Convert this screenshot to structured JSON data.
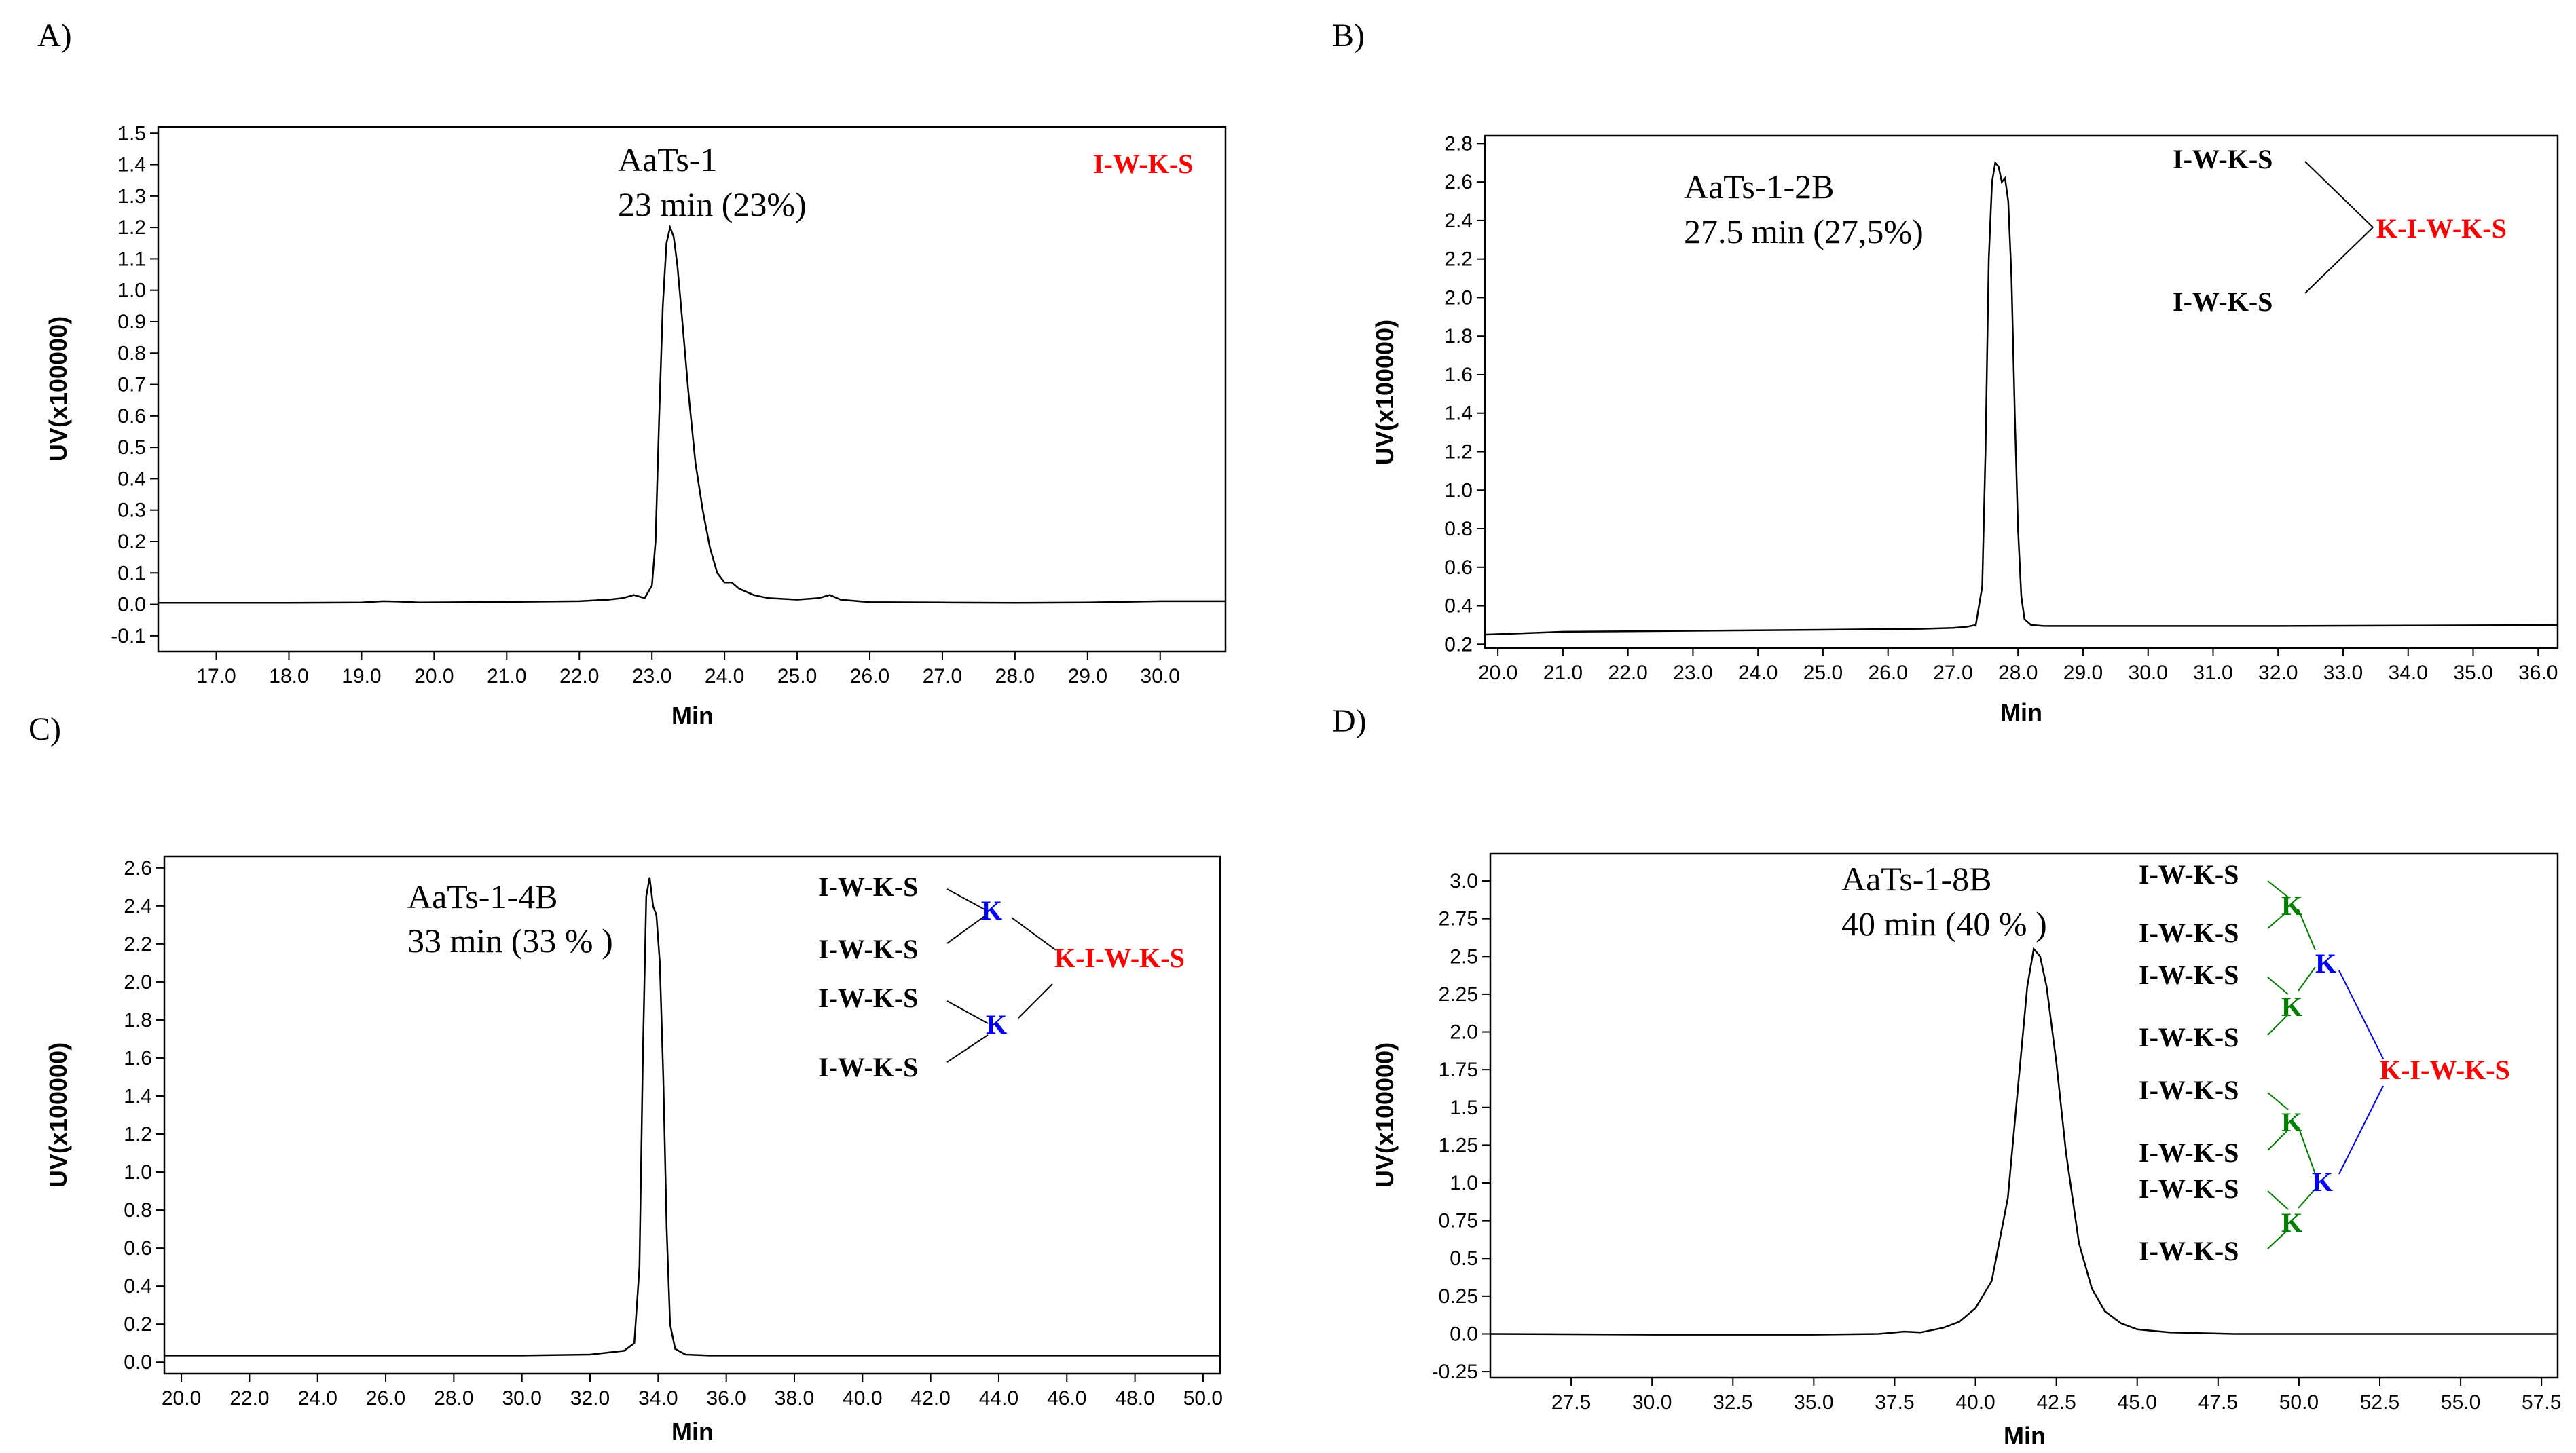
{
  "figure": {
    "panel_labels": [
      "A)",
      "B)",
      "C)",
      "D)"
    ]
  },
  "colors": {
    "black": "#000000",
    "red": "#ff0000",
    "blue": "#0000ff",
    "green": "#008000"
  },
  "chart_data": [
    {
      "type": "line",
      "panel": "A)",
      "xlabel": "Min",
      "ylabel": "UV(x100000)",
      "xlim": [
        16.2,
        30.9
      ],
      "ylim": [
        -0.15,
        1.52
      ],
      "xticks": [
        17.0,
        18.0,
        19.0,
        20.0,
        21.0,
        22.0,
        23.0,
        24.0,
        25.0,
        26.0,
        27.0,
        28.0,
        29.0,
        30.0
      ],
      "xtick_labels": [
        "17.0",
        "18.0",
        "19.0",
        "20.0",
        "21.0",
        "22.0",
        "23.0",
        "24.0",
        "25.0",
        "26.0",
        "27.0",
        "28.0",
        "29.0",
        "30.0"
      ],
      "yticks": [
        -0.1,
        0.0,
        0.1,
        0.2,
        0.3,
        0.4,
        0.5,
        0.6,
        0.7,
        0.8,
        0.9,
        1.0,
        1.1,
        1.2,
        1.3,
        1.4,
        1.5
      ],
      "ytick_labels": [
        "-0.1",
        "0.0",
        "0.1",
        "0.2",
        "0.3",
        "0.4",
        "0.5",
        "0.6",
        "0.7",
        "0.8",
        "0.9",
        "1.0",
        "1.1",
        "1.2",
        "1.3",
        "1.4",
        "1.5"
      ],
      "annotation": [
        "AaTs-1",
        "23 min (23%)"
      ],
      "series": [
        {
          "name": "UV trace",
          "x": [
            16.2,
            17.0,
            18.0,
            19.0,
            19.3,
            19.5,
            19.8,
            20.5,
            21.0,
            22.0,
            22.4,
            22.6,
            22.75,
            22.9,
            23.0,
            23.05,
            23.1,
            23.15,
            23.2,
            23.25,
            23.3,
            23.35,
            23.4,
            23.5,
            23.6,
            23.7,
            23.8,
            23.9,
            24.0,
            24.1,
            24.2,
            24.4,
            24.6,
            25.0,
            25.3,
            25.45,
            25.6,
            26.0,
            27.0,
            28.0,
            29.0,
            30.0,
            30.9
          ],
          "y": [
            0.005,
            0.005,
            0.005,
            0.006,
            0.01,
            0.009,
            0.006,
            0.007,
            0.008,
            0.01,
            0.015,
            0.02,
            0.03,
            0.02,
            0.06,
            0.2,
            0.6,
            0.95,
            1.15,
            1.2,
            1.17,
            1.08,
            0.95,
            0.68,
            0.45,
            0.3,
            0.18,
            0.1,
            0.07,
            0.07,
            0.05,
            0.03,
            0.02,
            0.015,
            0.02,
            0.03,
            0.015,
            0.007,
            0.006,
            0.005,
            0.006,
            0.01,
            0.01
          ]
        }
      ]
    },
    {
      "type": "line",
      "panel": "B)",
      "xlabel": "Min",
      "ylabel": "UV(x100000)",
      "xlim": [
        19.8,
        36.3
      ],
      "ylim": [
        0.18,
        2.84
      ],
      "xticks": [
        20.0,
        21.0,
        22.0,
        23.0,
        24.0,
        25.0,
        26.0,
        27.0,
        28.0,
        29.0,
        30.0,
        31.0,
        32.0,
        33.0,
        34.0,
        35.0,
        36.0
      ],
      "xtick_labels": [
        "20.0",
        "21.0",
        "22.0",
        "23.0",
        "24.0",
        "25.0",
        "26.0",
        "27.0",
        "28.0",
        "29.0",
        "30.0",
        "31.0",
        "32.0",
        "33.0",
        "34.0",
        "35.0",
        "36.0"
      ],
      "yticks": [
        0.2,
        0.4,
        0.6,
        0.8,
        1.0,
        1.2,
        1.4,
        1.6,
        1.8,
        2.0,
        2.2,
        2.4,
        2.6,
        2.8
      ],
      "ytick_labels": [
        "0.2",
        "0.4",
        "0.6",
        "0.8",
        "1.0",
        "1.2",
        "1.4",
        "1.6",
        "1.8",
        "2.0",
        "2.2",
        "2.4",
        "2.6",
        "2.8"
      ],
      "annotation": [
        "AaTs-1-2B",
        "27.5 min (27,5%)"
      ],
      "series": [
        {
          "name": "UV trace",
          "x": [
            19.8,
            21.0,
            23.0,
            25.0,
            26.5,
            27.0,
            27.2,
            27.35,
            27.45,
            27.5,
            27.55,
            27.6,
            27.65,
            27.7,
            27.75,
            27.8,
            27.85,
            27.9,
            27.95,
            28.0,
            28.05,
            28.1,
            28.2,
            28.4,
            29.0,
            30.0,
            32.0,
            34.0,
            36.3
          ],
          "y": [
            0.25,
            0.265,
            0.27,
            0.275,
            0.28,
            0.285,
            0.29,
            0.3,
            0.5,
            1.2,
            2.2,
            2.6,
            2.7,
            2.68,
            2.6,
            2.62,
            2.5,
            2.1,
            1.4,
            0.8,
            0.45,
            0.33,
            0.3,
            0.295,
            0.295,
            0.295,
            0.295,
            0.297,
            0.3
          ]
        }
      ],
      "structure": {
        "left_units": [
          "I-W-K-S",
          "I-W-K-S"
        ],
        "core": "K-I-W-K-S"
      }
    },
    {
      "type": "line",
      "panel": "C)",
      "xlabel": "Min",
      "ylabel": "UV(x100000)",
      "xlim": [
        19.5,
        50.5
      ],
      "ylim": [
        -0.06,
        2.66
      ],
      "xticks": [
        20.0,
        22.0,
        24.0,
        26.0,
        28.0,
        30.0,
        32.0,
        34.0,
        36.0,
        38.0,
        40.0,
        42.0,
        44.0,
        46.0,
        48.0,
        50.0
      ],
      "xtick_labels": [
        "20.0",
        "22.0",
        "24.0",
        "26.0",
        "28.0",
        "30.0",
        "32.0",
        "34.0",
        "36.0",
        "38.0",
        "40.0",
        "42.0",
        "44.0",
        "46.0",
        "48.0",
        "50.0"
      ],
      "yticks": [
        0.0,
        0.2,
        0.4,
        0.6,
        0.8,
        1.0,
        1.2,
        1.4,
        1.6,
        1.8,
        2.0,
        2.2,
        2.4,
        2.6
      ],
      "ytick_labels": [
        "0.0",
        "0.2",
        "0.4",
        "0.6",
        "0.8",
        "1.0",
        "1.2",
        "1.4",
        "1.6",
        "1.8",
        "2.0",
        "2.2",
        "2.4",
        "2.6"
      ],
      "annotation": [
        "AaTs-1-4B",
        "33 min (33 % )"
      ],
      "series": [
        {
          "name": "UV trace",
          "x": [
            19.5,
            25.0,
            30.0,
            32.0,
            33.0,
            33.3,
            33.45,
            33.55,
            33.65,
            33.75,
            33.85,
            33.95,
            34.05,
            34.15,
            34.25,
            34.35,
            34.5,
            34.8,
            35.5,
            40.0,
            45.0,
            50.5
          ],
          "y": [
            0.035,
            0.035,
            0.035,
            0.04,
            0.06,
            0.1,
            0.5,
            1.6,
            2.45,
            2.55,
            2.4,
            2.35,
            2.1,
            1.5,
            0.7,
            0.2,
            0.07,
            0.04,
            0.035,
            0.035,
            0.035,
            0.035
          ]
        }
      ],
      "structure": {
        "left_units": [
          "I-W-K-S",
          "I-W-K-S",
          "I-W-K-S",
          "I-W-K-S"
        ],
        "branch": [
          "K",
          "K"
        ],
        "core": "K-I-W-K-S"
      }
    },
    {
      "type": "line",
      "panel": "D)",
      "xlabel": "Min",
      "ylabel": "UV(x100000)",
      "xlim": [
        25.0,
        58.0
      ],
      "ylim": [
        -0.29,
        3.18
      ],
      "xticks": [
        27.5,
        30.0,
        32.5,
        35.0,
        37.5,
        40.0,
        42.5,
        45.0,
        47.5,
        50.0,
        52.5,
        55.0,
        57.5
      ],
      "xtick_labels": [
        "27.5",
        "30.0",
        "32.5",
        "35.0",
        "37.5",
        "40.0",
        "42.5",
        "45.0",
        "47.5",
        "50.0",
        "52.5",
        "55.0",
        "57.5"
      ],
      "yticks": [
        -0.25,
        0.0,
        0.25,
        0.5,
        0.75,
        1.0,
        1.25,
        1.5,
        1.75,
        2.0,
        2.25,
        2.5,
        2.75,
        3.0
      ],
      "ytick_labels": [
        "-0.25",
        "0.0",
        "0.25",
        "0.5",
        "0.75",
        "1.0",
        "1.25",
        "1.5",
        "1.75",
        "2.0",
        "2.25",
        "2.5",
        "2.75",
        "3.0"
      ],
      "annotation": [
        "AaTs-1-8B",
        "40 min (40 % )"
      ],
      "series": [
        {
          "name": "UV trace",
          "x": [
            25.0,
            30.0,
            35.0,
            37.0,
            37.8,
            38.3,
            39.0,
            39.5,
            40.0,
            40.5,
            41.0,
            41.3,
            41.6,
            41.8,
            42.0,
            42.2,
            42.5,
            42.8,
            43.2,
            43.6,
            44.0,
            44.5,
            45.0,
            46.0,
            48.0,
            52.0,
            58.0
          ],
          "y": [
            0.0,
            -0.005,
            -0.005,
            0.0,
            0.015,
            0.01,
            0.04,
            0.08,
            0.17,
            0.35,
            0.9,
            1.6,
            2.3,
            2.55,
            2.5,
            2.3,
            1.8,
            1.2,
            0.6,
            0.3,
            0.15,
            0.07,
            0.03,
            0.01,
            0.0,
            0.0,
            0.0
          ]
        }
      ],
      "structure": {
        "left_units": [
          "I-W-K-S",
          "I-W-K-S",
          "I-W-K-S",
          "I-W-K-S",
          "I-W-K-S",
          "I-W-K-S",
          "I-W-K-S",
          "I-W-K-S"
        ],
        "inner_branch": [
          "K",
          "K",
          "K",
          "K"
        ],
        "outer_branch": [
          "K",
          "K"
        ],
        "core": "K-I-W-K-S"
      }
    }
  ]
}
